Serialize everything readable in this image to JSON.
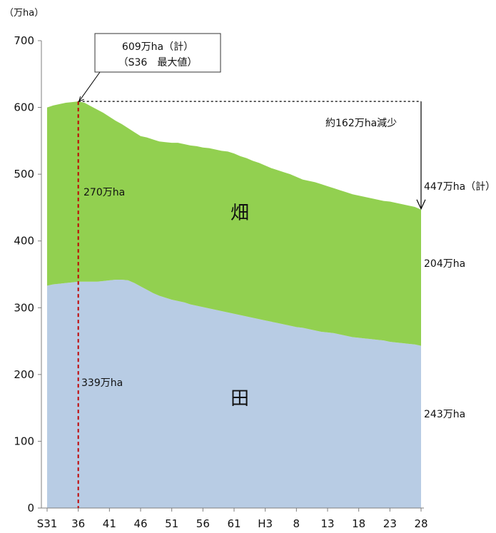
{
  "chart_data": {
    "type": "area",
    "stacked": true,
    "y_unit_label": "（万ha）",
    "ylim": [
      0,
      700
    ],
    "y_ticks": [
      "0",
      "100",
      "200",
      "300",
      "400",
      "500",
      "600",
      "700"
    ],
    "x_tick_labels": [
      "S31",
      "36",
      "41",
      "46",
      "51",
      "56",
      "61",
      "H3",
      "8",
      "13",
      "18",
      "23",
      "28"
    ],
    "x_years": [
      1956,
      1957,
      1958,
      1959,
      1960,
      1961,
      1962,
      1963,
      1964,
      1965,
      1966,
      1967,
      1968,
      1969,
      1970,
      1971,
      1972,
      1973,
      1974,
      1975,
      1976,
      1977,
      1978,
      1979,
      1980,
      1981,
      1982,
      1983,
      1984,
      1985,
      1986,
      1987,
      1988,
      1989,
      1990,
      1991,
      1992,
      1993,
      1994,
      1995,
      1996,
      1997,
      1998,
      1999,
      2000,
      2001,
      2002,
      2003,
      2004,
      2005,
      2006,
      2007,
      2008,
      2009,
      2010,
      2011,
      2012,
      2013,
      2014,
      2015,
      2016
    ],
    "series": [
      {
        "name": "田",
        "color": "#b8cce4",
        "values": [
          333,
          335,
          336,
          337,
          338,
          339,
          339,
          339,
          339,
          340,
          341,
          342,
          342,
          341,
          337,
          332,
          327,
          322,
          318,
          315,
          312,
          310,
          308,
          305,
          303,
          301,
          299,
          297,
          295,
          293,
          291,
          289,
          287,
          285,
          283,
          281,
          279,
          277,
          275,
          273,
          271,
          270,
          268,
          266,
          264,
          263,
          262,
          260,
          258,
          256,
          255,
          254,
          253,
          252,
          251,
          249,
          248,
          247,
          246,
          245,
          243
        ]
      },
      {
        "name": "畑",
        "color": "#92d050",
        "values": [
          267,
          268,
          269,
          270,
          270,
          270,
          268,
          263,
          258,
          252,
          245,
          238,
          233,
          228,
          226,
          225,
          228,
          230,
          231,
          233,
          235,
          237,
          237,
          238,
          239,
          239,
          240,
          240,
          240,
          241,
          240,
          238,
          237,
          235,
          234,
          232,
          230,
          229,
          228,
          227,
          225,
          222,
          222,
          222,
          221,
          219,
          217,
          216,
          215,
          214,
          213,
          212,
          211,
          210,
          209,
          210,
          209,
          208,
          207,
          206,
          204
        ]
      }
    ],
    "area_labels": {
      "hatake": "畑",
      "ta": "田"
    },
    "annotations": {
      "peak_line1": "609万ha（計）",
      "peak_line2": "（S36　最大値）",
      "peak_value": 609,
      "peak_year_label": "36",
      "decrease": "約162万ha減少",
      "total_2016": "447万ha（計）",
      "total_2016_value": 447,
      "hatake_1961": "270万ha",
      "ta_1961": "339万ha",
      "hatake_2016": "204万ha",
      "ta_2016": "243万ha"
    },
    "grid": false
  }
}
